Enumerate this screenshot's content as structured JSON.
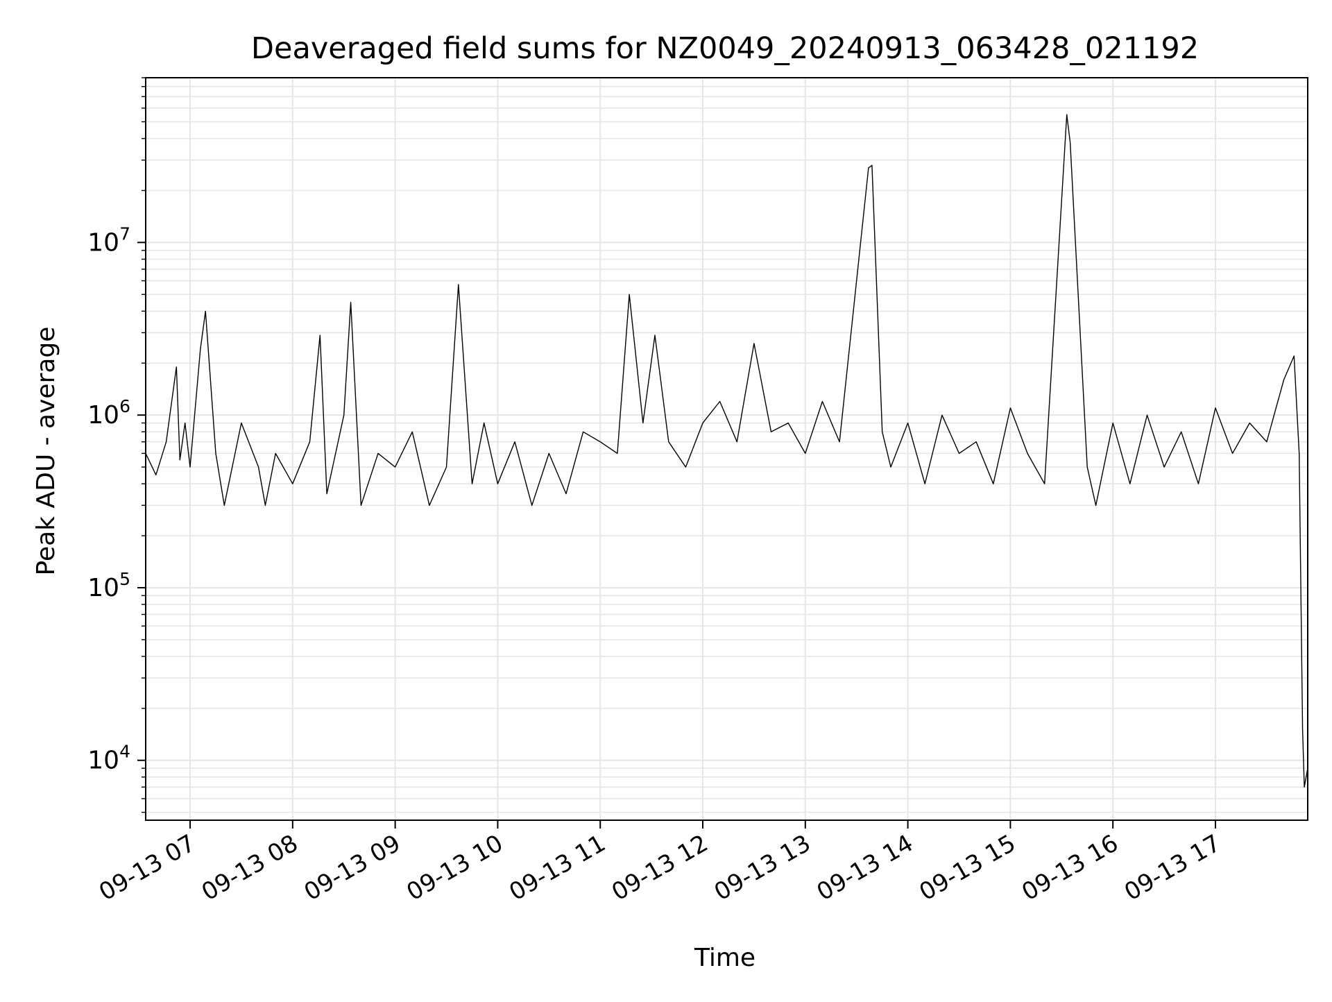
{
  "chart_data": {
    "type": "line",
    "title": "Deaveraged field sums for NZ0049_20240913_063428_021192",
    "xlabel": "Time",
    "ylabel": "Peak ADU - average",
    "x_axis": {
      "type": "datetime",
      "range": [
        "2024-09-13 06:34",
        "2024-09-13 17:54"
      ],
      "ticks": [
        {
          "value": "2024-09-13 07:00",
          "label": "09-13 07"
        },
        {
          "value": "2024-09-13 08:00",
          "label": "09-13 08"
        },
        {
          "value": "2024-09-13 09:00",
          "label": "09-13 09"
        },
        {
          "value": "2024-09-13 10:00",
          "label": "09-13 10"
        },
        {
          "value": "2024-09-13 11:00",
          "label": "09-13 11"
        },
        {
          "value": "2024-09-13 12:00",
          "label": "09-13 12"
        },
        {
          "value": "2024-09-13 13:00",
          "label": "09-13 13"
        },
        {
          "value": "2024-09-13 14:00",
          "label": "09-13 14"
        },
        {
          "value": "2024-09-13 15:00",
          "label": "09-13 15"
        },
        {
          "value": "2024-09-13 16:00",
          "label": "09-13 16"
        },
        {
          "value": "2024-09-13 17:00",
          "label": "09-13 17"
        }
      ]
    },
    "y_axis": {
      "scale": "log",
      "range": [
        4500,
        90000000
      ],
      "ticks": [
        {
          "value": 10000,
          "base": "10",
          "exp": "4"
        },
        {
          "value": 100000,
          "base": "10",
          "exp": "5"
        },
        {
          "value": 1000000,
          "base": "10",
          "exp": "6"
        },
        {
          "value": 10000000,
          "base": "10",
          "exp": "7"
        }
      ]
    },
    "grid": true,
    "line_color": "#000000",
    "grid_color": "#e6e6e6",
    "series": [
      {
        "x": [
          "2024-09-13 06:34",
          "2024-09-13 06:40",
          "2024-09-13 06:46",
          "2024-09-13 06:52",
          "2024-09-13 06:54",
          "2024-09-13 06:57",
          "2024-09-13 07:00",
          "2024-09-13 07:06",
          "2024-09-13 07:09",
          "2024-09-13 07:15",
          "2024-09-13 07:20",
          "2024-09-13 07:30",
          "2024-09-13 07:40",
          "2024-09-13 07:44",
          "2024-09-13 07:50",
          "2024-09-13 08:00",
          "2024-09-13 08:10",
          "2024-09-13 08:16",
          "2024-09-13 08:20",
          "2024-09-13 08:30",
          "2024-09-13 08:34",
          "2024-09-13 08:40",
          "2024-09-13 08:50",
          "2024-09-13 09:00",
          "2024-09-13 09:10",
          "2024-09-13 09:20",
          "2024-09-13 09:30",
          "2024-09-13 09:37",
          "2024-09-13 09:45",
          "2024-09-13 09:52",
          "2024-09-13 10:00",
          "2024-09-13 10:10",
          "2024-09-13 10:20",
          "2024-09-13 10:30",
          "2024-09-13 10:40",
          "2024-09-13 10:50",
          "2024-09-13 11:00",
          "2024-09-13 11:10",
          "2024-09-13 11:17",
          "2024-09-13 11:25",
          "2024-09-13 11:32",
          "2024-09-13 11:40",
          "2024-09-13 11:50",
          "2024-09-13 12:00",
          "2024-09-13 12:10",
          "2024-09-13 12:20",
          "2024-09-13 12:30",
          "2024-09-13 12:40",
          "2024-09-13 12:50",
          "2024-09-13 13:00",
          "2024-09-13 13:10",
          "2024-09-13 13:20",
          "2024-09-13 13:37",
          "2024-09-13 13:39",
          "2024-09-13 13:45",
          "2024-09-13 13:50",
          "2024-09-13 14:00",
          "2024-09-13 14:10",
          "2024-09-13 14:20",
          "2024-09-13 14:30",
          "2024-09-13 14:40",
          "2024-09-13 14:50",
          "2024-09-13 15:00",
          "2024-09-13 15:10",
          "2024-09-13 15:20",
          "2024-09-13 15:33",
          "2024-09-13 15:35",
          "2024-09-13 15:45",
          "2024-09-13 15:50",
          "2024-09-13 16:00",
          "2024-09-13 16:10",
          "2024-09-13 16:20",
          "2024-09-13 16:30",
          "2024-09-13 16:40",
          "2024-09-13 16:50",
          "2024-09-13 17:00",
          "2024-09-13 17:10",
          "2024-09-13 17:20",
          "2024-09-13 17:30",
          "2024-09-13 17:40",
          "2024-09-13 17:46",
          "2024-09-13 17:49",
          "2024-09-13 17:51",
          "2024-09-13 17:52",
          "2024-09-13 17:54"
        ],
        "values": [
          600000,
          450000,
          700000,
          1900000,
          550000,
          900000,
          500000,
          2400000,
          4000000,
          600000,
          300000,
          900000,
          500000,
          300000,
          600000,
          400000,
          700000,
          2900000,
          350000,
          1000000,
          4500000,
          300000,
          600000,
          500000,
          800000,
          300000,
          500000,
          5700000,
          400000,
          900000,
          400000,
          700000,
          300000,
          600000,
          350000,
          800000,
          700000,
          600000,
          5000000,
          900000,
          2900000,
          700000,
          500000,
          900000,
          1200000,
          700000,
          2600000,
          800000,
          900000,
          600000,
          1200000,
          700000,
          27000000,
          28000000,
          800000,
          500000,
          900000,
          400000,
          1000000,
          600000,
          700000,
          400000,
          1100000,
          600000,
          400000,
          55000000,
          38000000,
          500000,
          300000,
          900000,
          400000,
          1000000,
          500000,
          800000,
          400000,
          1100000,
          600000,
          900000,
          700000,
          1600000,
          2200000,
          600000,
          15000,
          7000,
          9000
        ]
      }
    ]
  }
}
